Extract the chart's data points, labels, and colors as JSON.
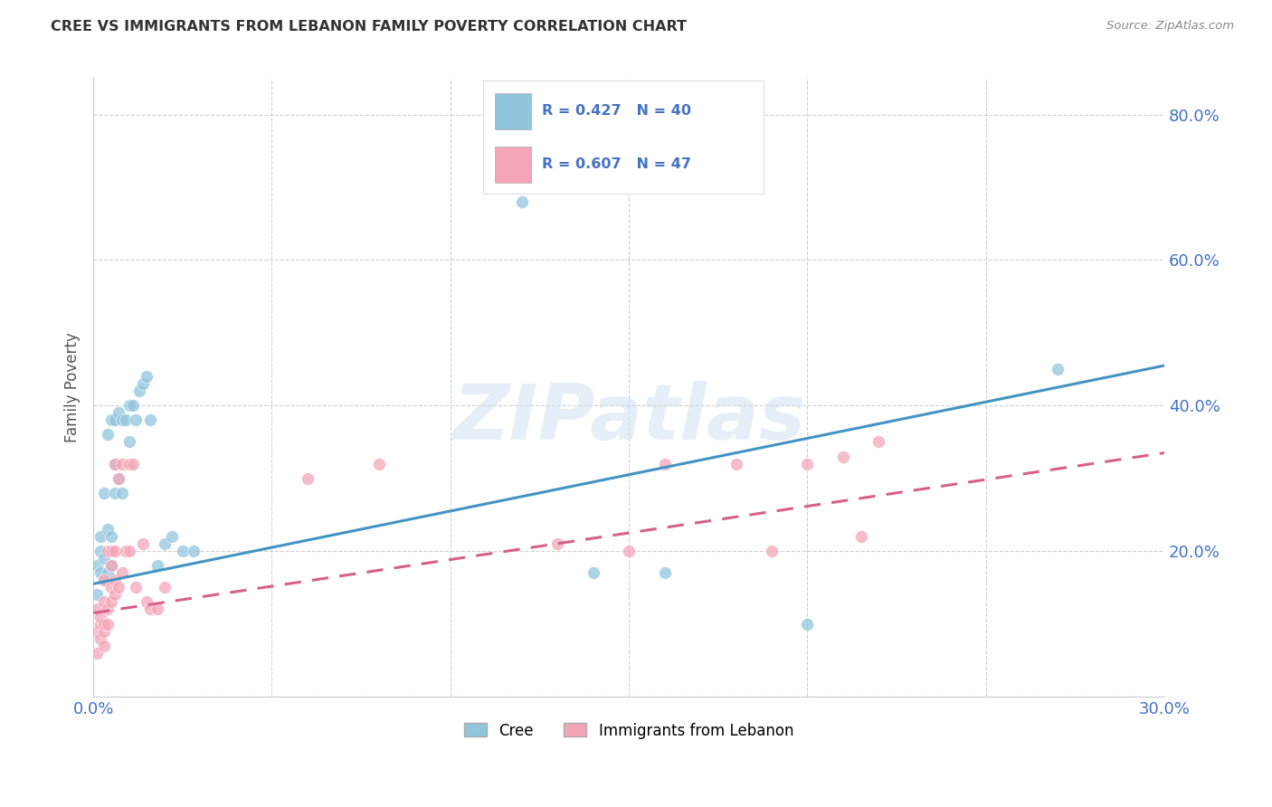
{
  "title": "CREE VS IMMIGRANTS FROM LEBANON FAMILY POVERTY CORRELATION CHART",
  "source": "Source: ZipAtlas.com",
  "ylabel": "Family Poverty",
  "x_min": 0.0,
  "x_max": 0.3,
  "y_min": 0.0,
  "y_max": 0.85,
  "x_ticks": [
    0.0,
    0.05,
    0.1,
    0.15,
    0.2,
    0.25,
    0.3
  ],
  "y_ticks": [
    0.0,
    0.2,
    0.4,
    0.6,
    0.8
  ],
  "cree_color": "#92c5de",
  "lebanon_color": "#f4a6b8",
  "cree_line_color": "#4393c3",
  "lebanon_line_color": "#d6618a",
  "watermark": "ZIPatlas",
  "background_color": "#ffffff",
  "grid_color": "#cccccc",
  "cree_points_x": [
    0.001,
    0.001,
    0.002,
    0.002,
    0.002,
    0.003,
    0.003,
    0.003,
    0.004,
    0.004,
    0.004,
    0.005,
    0.005,
    0.005,
    0.006,
    0.006,
    0.006,
    0.007,
    0.007,
    0.008,
    0.008,
    0.009,
    0.01,
    0.01,
    0.011,
    0.012,
    0.013,
    0.014,
    0.015,
    0.016,
    0.018,
    0.02,
    0.022,
    0.025,
    0.028,
    0.12,
    0.14,
    0.16,
    0.2,
    0.27
  ],
  "cree_points_y": [
    0.14,
    0.18,
    0.17,
    0.2,
    0.22,
    0.16,
    0.19,
    0.28,
    0.17,
    0.23,
    0.36,
    0.18,
    0.22,
    0.38,
    0.28,
    0.32,
    0.38,
    0.3,
    0.39,
    0.28,
    0.38,
    0.38,
    0.35,
    0.4,
    0.4,
    0.38,
    0.42,
    0.43,
    0.44,
    0.38,
    0.18,
    0.21,
    0.22,
    0.2,
    0.2,
    0.68,
    0.17,
    0.17,
    0.1,
    0.45
  ],
  "lebanon_points_x": [
    0.001,
    0.001,
    0.001,
    0.002,
    0.002,
    0.002,
    0.003,
    0.003,
    0.003,
    0.003,
    0.003,
    0.004,
    0.004,
    0.004,
    0.005,
    0.005,
    0.005,
    0.005,
    0.006,
    0.006,
    0.006,
    0.006,
    0.007,
    0.007,
    0.008,
    0.008,
    0.009,
    0.01,
    0.01,
    0.011,
    0.012,
    0.014,
    0.015,
    0.016,
    0.018,
    0.02,
    0.06,
    0.08,
    0.13,
    0.15,
    0.16,
    0.18,
    0.19,
    0.2,
    0.21,
    0.215,
    0.22
  ],
  "lebanon_points_y": [
    0.06,
    0.09,
    0.12,
    0.08,
    0.1,
    0.11,
    0.07,
    0.09,
    0.1,
    0.13,
    0.16,
    0.1,
    0.12,
    0.2,
    0.13,
    0.15,
    0.18,
    0.2,
    0.14,
    0.16,
    0.2,
    0.32,
    0.15,
    0.3,
    0.17,
    0.32,
    0.2,
    0.2,
    0.32,
    0.32,
    0.15,
    0.21,
    0.13,
    0.12,
    0.12,
    0.15,
    0.3,
    0.32,
    0.21,
    0.2,
    0.32,
    0.32,
    0.2,
    0.32,
    0.33,
    0.22,
    0.35
  ],
  "cree_line_x0": 0.0,
  "cree_line_y0": 0.155,
  "cree_line_x1": 0.3,
  "cree_line_y1": 0.455,
  "leb_line_x0": 0.0,
  "leb_line_y0": 0.115,
  "leb_line_x1": 0.3,
  "leb_line_y1": 0.335
}
